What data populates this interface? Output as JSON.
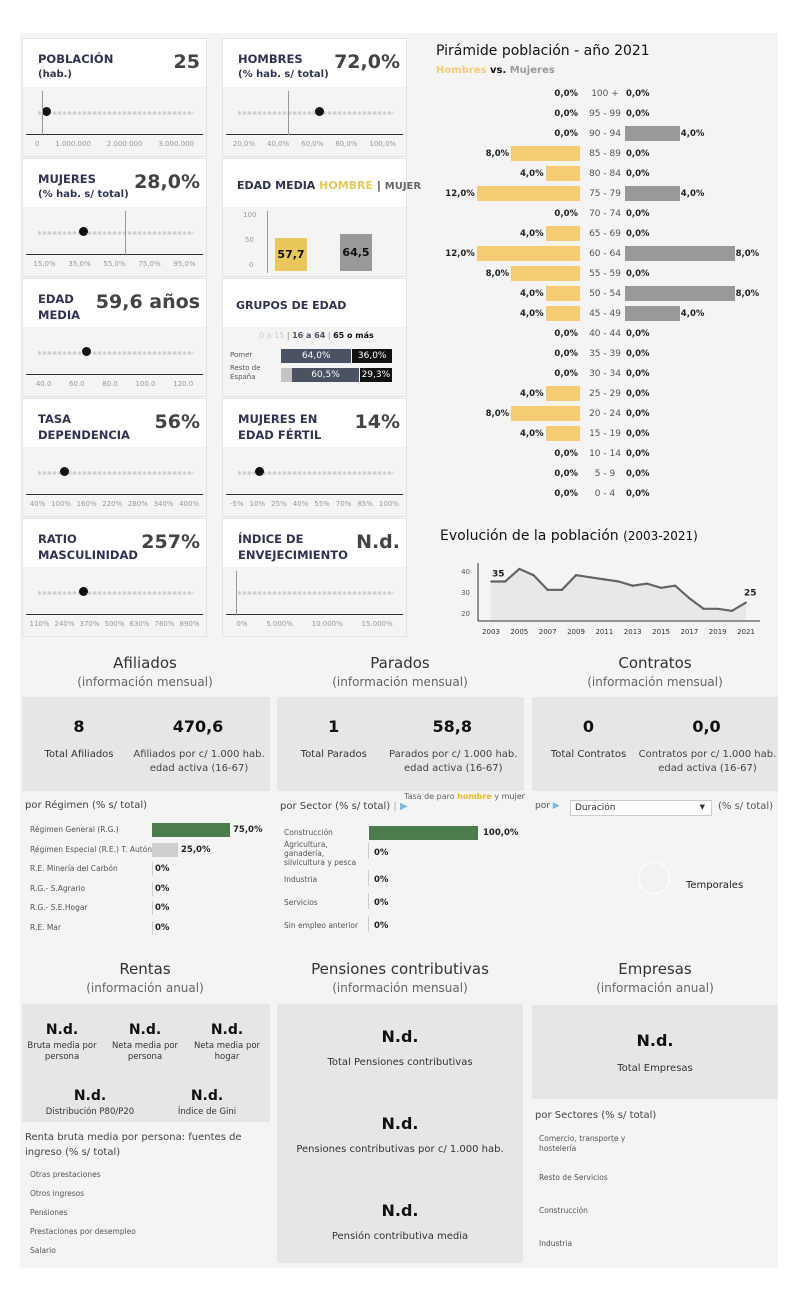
{
  "kpis": [
    {
      "title": "POBLACIÓN",
      "subtitle": "(hab.)",
      "value": "25",
      "ticks": [
        "0",
        "1.000.000",
        "2.000.000",
        "3.000.000"
      ]
    },
    {
      "title": "HOMBRES",
      "subtitle": "(% hab. s/ total)",
      "value": "72,0%",
      "ticks": [
        "20,0%",
        "40,0%",
        "60,0%",
        "80,0%",
        "100,0%"
      ]
    },
    {
      "title": "MUJERES",
      "subtitle": "(% hab. s/ total)",
      "value": "28,0%",
      "ticks": [
        "15,0%",
        "35,0%",
        "55,0%",
        "75,0%",
        "95,0%"
      ]
    },
    {
      "title": "EDAD",
      "subtitle": "MEDIA",
      "value": "59,6 años",
      "ticks": [
        "40.0",
        "60.0",
        "80.0",
        "100.0",
        "120.0"
      ]
    },
    {
      "title": "TASA",
      "subtitle": "DEPENDENCIA",
      "value": "56%",
      "ticks": [
        "40%",
        "100%",
        "160%",
        "220%",
        "280%",
        "340%",
        "400%"
      ]
    },
    {
      "title": "MUJERES EN",
      "subtitle": "EDAD FÉRTIL",
      "value": "14%",
      "ticks": [
        "-5%",
        "10%",
        "25%",
        "40%",
        "55%",
        "70%",
        "85%",
        "100%"
      ]
    },
    {
      "title": "RATIO",
      "subtitle": "MASCULINIDAD",
      "value": "257%",
      "ticks": [
        "110%",
        "240%",
        "370%",
        "500%",
        "630%",
        "760%",
        "890%"
      ]
    },
    {
      "title": "ÍNDICE DE",
      "subtitle": "ENVEJECIMIENTO",
      "value": "N.d.",
      "ticks": [
        "0%",
        "5.000%",
        "10.000%",
        "15.000%"
      ]
    }
  ],
  "edad_media": {
    "title": "EDAD MEDIA",
    "hombre": "HOMBRE",
    "sep": "|",
    "mujer": "MUJER",
    "axis": [
      "100",
      "50",
      "0"
    ],
    "hombre_value": 57.7,
    "hombre_label": "57,7",
    "mujer_value": 64.5,
    "mujer_label": "64,5",
    "colors": {
      "hombre": "#e8c85a",
      "mujer": "#999999"
    }
  },
  "grupos": {
    "title": "GRUPOS DE EDAD",
    "legend": [
      "0 a 15",
      "|",
      "16 a 64",
      "|",
      "65 o más"
    ],
    "rows": [
      {
        "label": "Pomer",
        "young": 0,
        "mid": "64,0%",
        "old": "36,0%",
        "mid_pct": 64.0,
        "old_pct": 36.0
      },
      {
        "label": "Resto de España",
        "young": 10.2,
        "mid": "60,5%",
        "old": "29,3%",
        "mid_pct": 60.5,
        "old_pct": 29.3
      }
    ]
  },
  "pyramid": {
    "title": "Pirámide población - año 2021",
    "legend_h": "Hombres",
    "legend_vs": "vs.",
    "legend_m": "Mujeres",
    "colors": {
      "hombres": "#f5cc74",
      "mujeres": "#999999"
    },
    "groups": [
      "100 +",
      "95 - 99",
      "90 - 94",
      "85 - 89",
      "80 - 84",
      "75 - 79",
      "70 - 74",
      "65 - 69",
      "60 - 64",
      "55 - 59",
      "50 - 54",
      "45 - 49",
      "40 - 44",
      "35 - 39",
      "30 - 34",
      "25 - 29",
      "20 - 24",
      "15 - 19",
      "10 - 14",
      "5 - 9",
      "0 - 4"
    ],
    "hombres": [
      0,
      0,
      0,
      8,
      4,
      12,
      0,
      4,
      12,
      8,
      4,
      4,
      0,
      0,
      0,
      4,
      8,
      4,
      0,
      0,
      0
    ],
    "mujeres": [
      0,
      0,
      4,
      0,
      0,
      4,
      0,
      0,
      8,
      0,
      8,
      4,
      0,
      0,
      0,
      0,
      0,
      0,
      0,
      0,
      0
    ]
  },
  "chart_data": {
    "type": "area",
    "title": "Evolución de la población",
    "subtitle": "(2003-2021)",
    "x": [
      2003,
      2004,
      2005,
      2006,
      2007,
      2008,
      2009,
      2010,
      2011,
      2012,
      2013,
      2014,
      2015,
      2016,
      2017,
      2018,
      2019,
      2020,
      2021
    ],
    "y": [
      35,
      35,
      41,
      38,
      31,
      31,
      38,
      37,
      36,
      35,
      33,
      34,
      32,
      33,
      27,
      22,
      22,
      21,
      25
    ],
    "xticks": [
      "2003",
      "2005",
      "2007",
      "2009",
      "2011",
      "2013",
      "2015",
      "2017",
      "2019",
      "2021"
    ],
    "yticks": [
      "40",
      "30",
      "20"
    ],
    "ylim": [
      17,
      46
    ],
    "labels": {
      "first": "35",
      "last": "25"
    },
    "grid": false
  },
  "afiliados": {
    "title": "Afiliados",
    "subtitle": "(información mensual)",
    "total": "8",
    "total_label": "Total Afiliados",
    "rate": "470,6",
    "rate_label": "Afiliados por c/ 1.000 hab. edad activa (16-67)",
    "breakdown_title": "por Régimen (% s/ total)",
    "items": [
      {
        "label": "Régimen General (R.G.)",
        "value": "75,0%",
        "pct": 75
      },
      {
        "label": "Régimen Especial (R.E.) T. Autóno..",
        "value": "25,0%",
        "pct": 25
      },
      {
        "label": "R.E. Minería del Carbón",
        "value": "0%",
        "pct": 0
      },
      {
        "label": "R.G.- S.Agrario",
        "value": "0%",
        "pct": 0
      },
      {
        "label": "R.G.- S.E.Hogar",
        "value": "0%",
        "pct": 0
      },
      {
        "label": "R.E. Mar",
        "value": "0%",
        "pct": 0
      }
    ]
  },
  "parados": {
    "title": "Parados",
    "subtitle": "(información mensual)",
    "total": "1",
    "total_label": "Total Parados",
    "rate": "58,8",
    "rate_label": "Parados por c/ 1.000 hab. edad activa (16-67)",
    "breakdown_title": "por Sector (% s/ total)",
    "sep": "|",
    "tasa_pre": "Tasa de paro",
    "tasa_h": "hombre",
    "tasa_y": "y",
    "tasa_m": "mujer",
    "items": [
      {
        "label": "Construcción",
        "value": "100,0%",
        "pct": 100
      },
      {
        "label": "Agricultura, ganadería, silvicultura y pesca",
        "value": "0%",
        "pct": 0
      },
      {
        "label": "Industria",
        "value": "0%",
        "pct": 0
      },
      {
        "label": "Servicios",
        "value": "0%",
        "pct": 0
      },
      {
        "label": "Sin empleo anterior",
        "value": "0%",
        "pct": 0
      }
    ]
  },
  "contratos": {
    "title": "Contratos",
    "subtitle": "(información mensual)",
    "total": "0",
    "total_label": "Total Contratos",
    "rate": "0,0",
    "rate_label": "Contratos por c/ 1.000 hab. edad activa (16-67)",
    "por": "por",
    "select_value": "Duración",
    "suffix": "(% s/ total)",
    "pie_label": "Temporales"
  },
  "rentas": {
    "title": "Rentas",
    "subtitle": "(información anual)",
    "kpis": [
      {
        "value": "N.d.",
        "label": "Bruta media por persona"
      },
      {
        "value": "N.d.",
        "label": "Neta media por persona"
      },
      {
        "value": "N.d.",
        "label": "Neta media por hogar"
      },
      {
        "value": "N.d.",
        "label": "Distribución P80/P20"
      },
      {
        "value": "N.d.",
        "label": "Índice de Gini"
      }
    ],
    "breakdown_title": "Renta bruta media por persona: fuentes de ingreso (% s/ total)",
    "items": [
      "Otras prestaciones",
      "Otros ingresos",
      "Pensiones",
      "Prestaciones por desempleo",
      "Salario"
    ]
  },
  "pensiones": {
    "title": "Pensiones contributivas",
    "subtitle": "(información mensual)",
    "kpis": [
      {
        "value": "N.d.",
        "label": "Total Pensiones contributivas"
      },
      {
        "value": "N.d.",
        "label": "Pensiones contributivas por c/ 1.000 hab."
      },
      {
        "value": "N.d.",
        "label": "Pensión contributiva media"
      }
    ]
  },
  "empresas": {
    "title": "Empresas",
    "subtitle": "(información anual)",
    "total": "N.d.",
    "total_label": "Total Empresas",
    "breakdown_title": "por Sectores (% s/ total)",
    "items": [
      "Comercio, transporte y hostelería",
      "Resto de Servicios",
      "Construcción",
      "Industria"
    ]
  }
}
